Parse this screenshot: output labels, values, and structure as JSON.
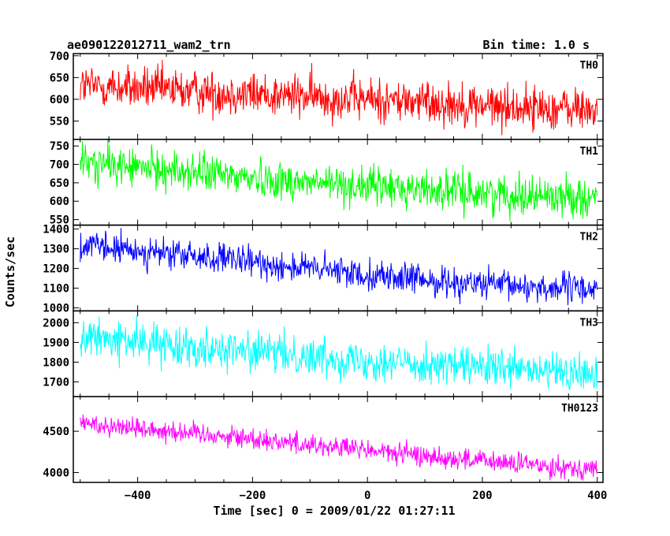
{
  "header": {
    "object": "ae090122012711_wam2_trn",
    "bin_time": "Bin time: 1.0 s"
  },
  "chart_data": {
    "type": "line",
    "xlabel": "Time [sec] 0 = 2009/01/22 01:27:11",
    "ylabel": "Counts/sec",
    "xlim": [
      -512,
      410
    ],
    "xticks": [
      -400,
      -200,
      0,
      200,
      400
    ],
    "xtick_labels": [
      "−400",
      "−200",
      "0",
      "200",
      "400"
    ],
    "x_start": -500,
    "x_end": 400,
    "x_step": 1,
    "panels": [
      {
        "name": "TH0",
        "color": "#ff0000",
        "ylim": [
          508,
          705
        ],
        "yticks": [
          550,
          600,
          650,
          700
        ],
        "trend": [
          [
            -500,
            632
          ],
          [
            -300,
            618
          ],
          [
            -100,
            606
          ],
          [
            100,
            594
          ],
          [
            250,
            582
          ],
          [
            400,
            576
          ]
        ],
        "noise": 25
      },
      {
        "name": "TH1",
        "color": "#00ff00",
        "ylim": [
          535,
          768
        ],
        "yticks": [
          550,
          600,
          650,
          700,
          750
        ],
        "trend": [
          [
            -500,
            705
          ],
          [
            -300,
            678
          ],
          [
            -100,
            650
          ],
          [
            100,
            632
          ],
          [
            250,
            618
          ],
          [
            400,
            610
          ]
        ],
        "noise": 26
      },
      {
        "name": "TH2",
        "color": "#0000ff",
        "ylim": [
          985,
          1420
        ],
        "yticks": [
          1000,
          1100,
          1200,
          1300,
          1400
        ],
        "trend": [
          [
            -500,
            1315
          ],
          [
            -300,
            1260
          ],
          [
            -100,
            1200
          ],
          [
            100,
            1140
          ],
          [
            250,
            1110
          ],
          [
            400,
            1095
          ]
        ],
        "noise": 38
      },
      {
        "name": "TH3",
        "color": "#00ffff",
        "ylim": [
          1625,
          2060
        ],
        "yticks": [
          1700,
          1800,
          1900,
          2000
        ],
        "trend": [
          [
            -500,
            1925
          ],
          [
            -300,
            1880
          ],
          [
            -100,
            1830
          ],
          [
            100,
            1790
          ],
          [
            250,
            1760
          ],
          [
            400,
            1735
          ]
        ],
        "noise": 48
      },
      {
        "name": "TH0123",
        "color": "#ff00ff",
        "ylim": [
          3880,
          4920
        ],
        "yticks": [
          4000,
          4500
        ],
        "trend": [
          [
            -500,
            4600
          ],
          [
            -300,
            4480
          ],
          [
            -100,
            4340
          ],
          [
            100,
            4200
          ],
          [
            250,
            4110
          ],
          [
            400,
            4040
          ]
        ],
        "noise": 65
      }
    ]
  }
}
